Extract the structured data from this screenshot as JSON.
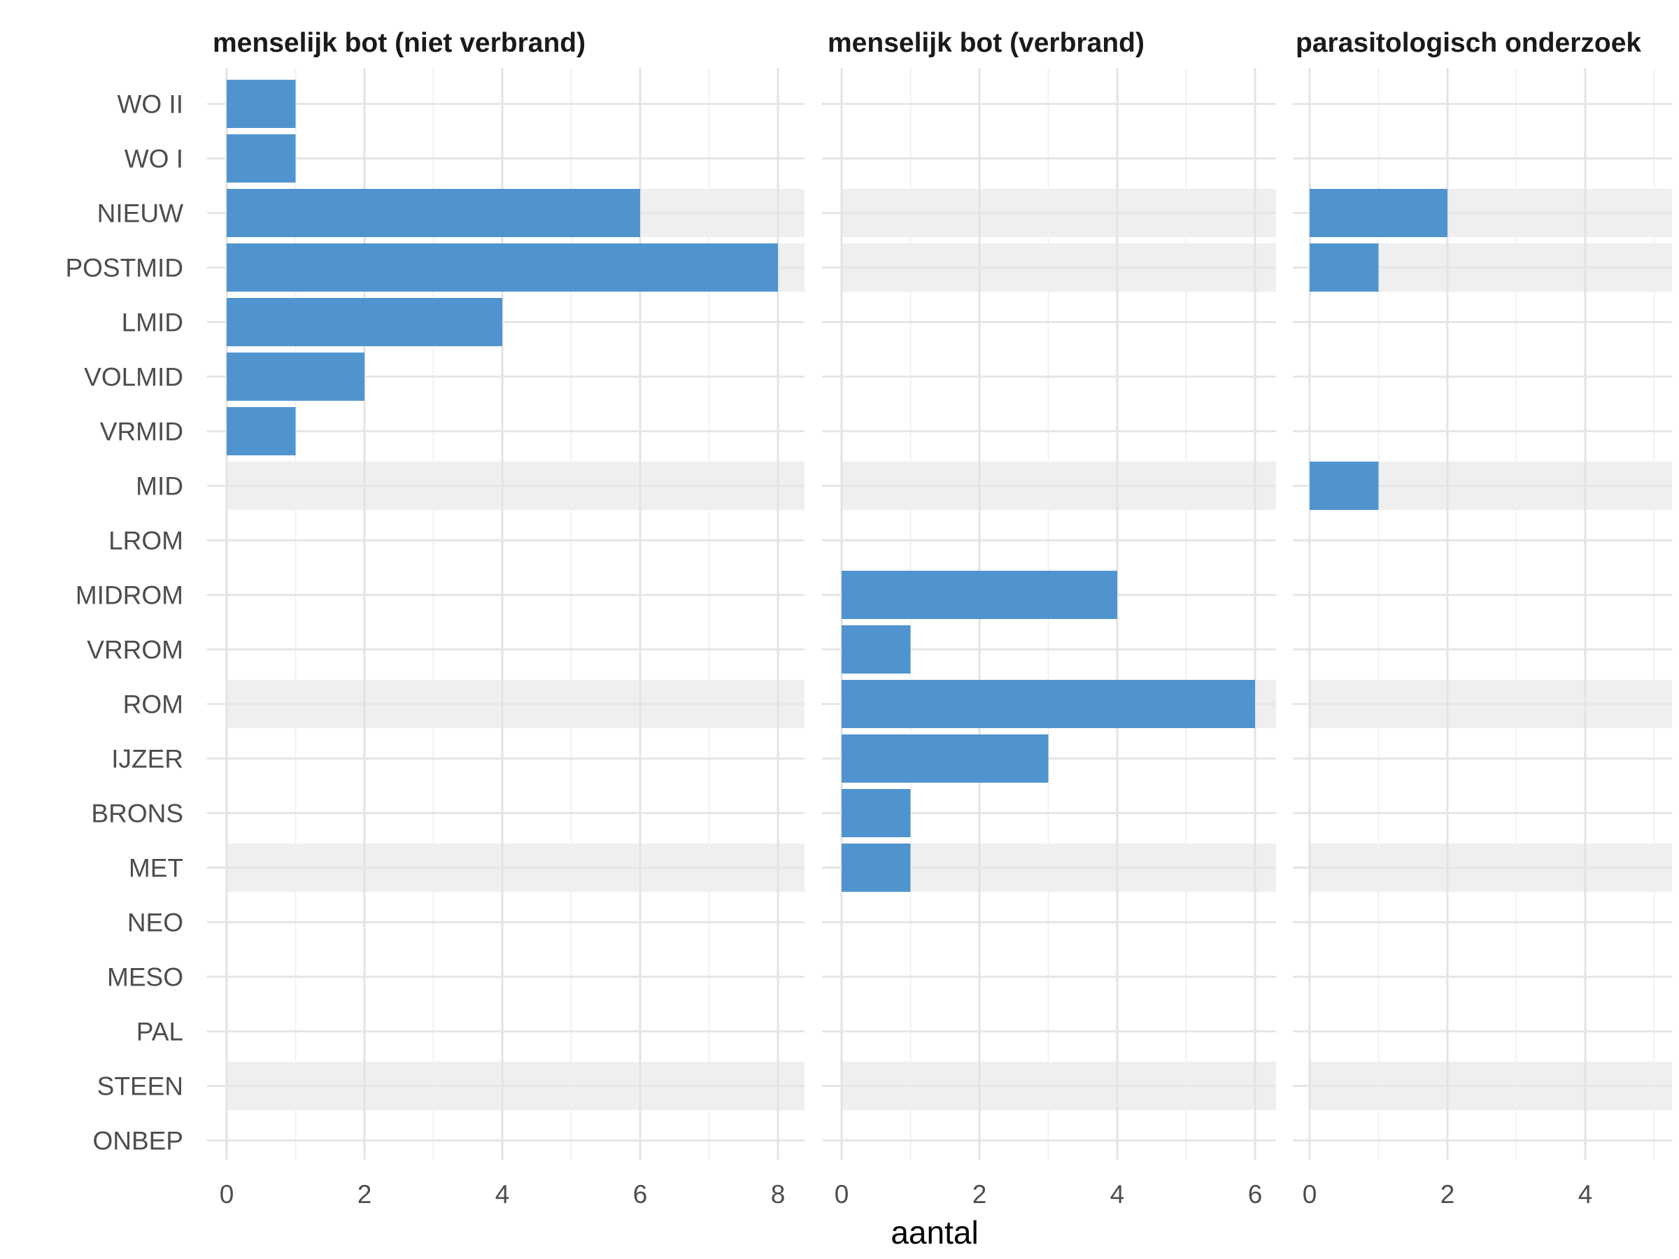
{
  "chart_data": {
    "type": "bar",
    "orientation": "horizontal",
    "categories": [
      "WO II",
      "WO I",
      "NIEUW",
      "POSTMID",
      "LMID",
      "VOLMID",
      "VRMID",
      "MID",
      "LROM",
      "MIDROM",
      "VRROM",
      "ROM",
      "IJZER",
      "BRONS",
      "MET",
      "NEO",
      "MESO",
      "PAL",
      "STEEN",
      "ONBEP"
    ],
    "shaded_categories": [
      "NIEUW",
      "POSTMID",
      "MID",
      "ROM",
      "MET",
      "STEEN"
    ],
    "xlabel": "aantal",
    "bar_color": "#5094cf",
    "shade_color": "#efefef",
    "grid": true,
    "panels": [
      {
        "title": "menselijk bot (niet verbrand)",
        "xlim": [
          0,
          8.4
        ],
        "ticks": [
          0,
          2,
          4,
          6,
          8
        ],
        "values": [
          1,
          1,
          6,
          8,
          4,
          2,
          1,
          0,
          0,
          0,
          0,
          0,
          0,
          0,
          0,
          0,
          0,
          0,
          0,
          0
        ]
      },
      {
        "title": "menselijk bot (verbrand)",
        "xlim": [
          0,
          6.3
        ],
        "ticks": [
          0,
          2,
          4,
          6
        ],
        "values": [
          0,
          0,
          0,
          0,
          0,
          0,
          0,
          0,
          0,
          4,
          1,
          6,
          3,
          1,
          1,
          0,
          0,
          0,
          0,
          0
        ]
      },
      {
        "title": "parasitologisch onderzoek",
        "xlim": [
          0,
          5.3
        ],
        "ticks": [
          0,
          2,
          4
        ],
        "values": [
          0,
          0,
          2,
          1,
          0,
          0,
          0,
          1,
          0,
          0,
          0,
          0,
          0,
          0,
          0,
          0,
          0,
          0,
          0,
          0
        ]
      }
    ]
  }
}
